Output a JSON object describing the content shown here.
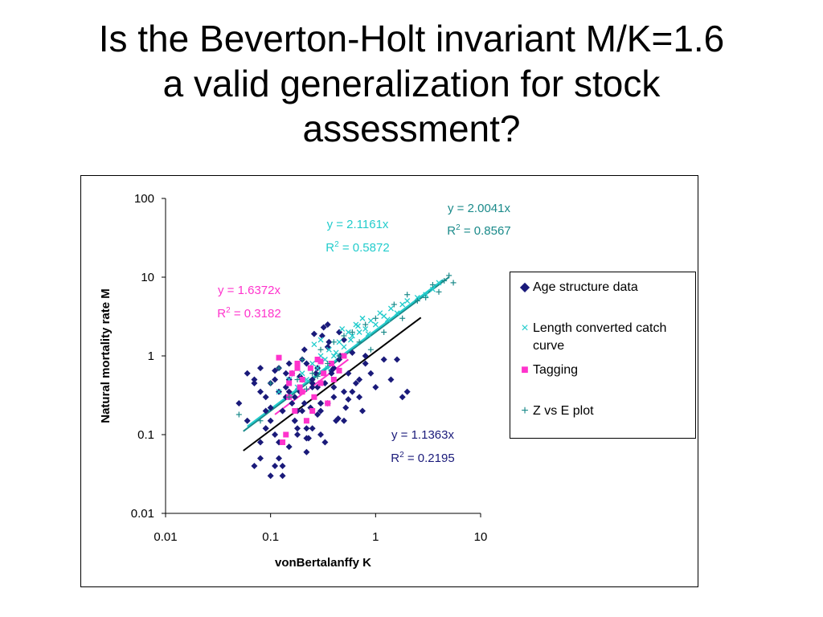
{
  "title_lines": [
    "Is the Beverton-Holt invariant M/K=1.6",
    "a valid generalization for stock",
    "assessment?"
  ],
  "colors": {
    "age": "#1a1a7a",
    "length": "#22cccc",
    "tagging": "#ff33cc",
    "zvse": "#1a8a8a",
    "regression_black": "#000000"
  },
  "chart_data": {
    "type": "scatter",
    "xlabel": "vonBertalanffy K",
    "ylabel": "Natural mortality rate M",
    "xscale": "log",
    "yscale": "log",
    "xlim": [
      0.01,
      10
    ],
    "ylim": [
      0.01,
      100
    ],
    "x_ticks": [
      "0.01",
      "0.1",
      "1",
      "10"
    ],
    "y_ticks": [
      "0.01",
      "0.1",
      "1",
      "10",
      "100"
    ],
    "legend_position": "right",
    "series": [
      {
        "name": "Age structure data",
        "color": "#1a1a7a",
        "marker": "diamond",
        "x": [
          0.05,
          0.06,
          0.07,
          0.08,
          0.09,
          0.1,
          0.11,
          0.12,
          0.13,
          0.14,
          0.06,
          0.07,
          0.08,
          0.09,
          0.1,
          0.11,
          0.12,
          0.14,
          0.15,
          0.16,
          0.08,
          0.09,
          0.1,
          0.12,
          0.13,
          0.15,
          0.17,
          0.18,
          0.2,
          0.22,
          0.1,
          0.11,
          0.13,
          0.15,
          0.17,
          0.19,
          0.21,
          0.23,
          0.25,
          0.28,
          0.12,
          0.14,
          0.16,
          0.18,
          0.2,
          0.22,
          0.25,
          0.28,
          0.3,
          0.33,
          0.15,
          0.17,
          0.19,
          0.21,
          0.24,
          0.27,
          0.3,
          0.33,
          0.36,
          0.4,
          0.2,
          0.22,
          0.25,
          0.28,
          0.31,
          0.35,
          0.38,
          0.42,
          0.46,
          0.5,
          0.25,
          0.3,
          0.35,
          0.4,
          0.45,
          0.5,
          0.55,
          0.6,
          0.7,
          0.8,
          0.3,
          0.4,
          0.5,
          0.6,
          0.7,
          0.8,
          0.9,
          1.0,
          1.2,
          1.4,
          0.07,
          0.08,
          0.09,
          0.11,
          0.13,
          0.35,
          0.45,
          0.55,
          0.65,
          0.75,
          1.6,
          1.8,
          2.0,
          0.18,
          0.22,
          0.26,
          0.32,
          0.38,
          0.44,
          0.52
        ],
        "y": [
          0.25,
          0.6,
          0.04,
          0.08,
          0.3,
          0.15,
          0.5,
          0.7,
          0.2,
          0.4,
          0.15,
          0.45,
          0.05,
          0.2,
          0.03,
          0.1,
          0.35,
          0.6,
          0.07,
          0.25,
          0.7,
          0.12,
          0.45,
          0.05,
          0.2,
          0.8,
          0.3,
          0.12,
          0.5,
          0.09,
          0.22,
          0.65,
          0.04,
          0.35,
          0.15,
          0.55,
          0.25,
          0.09,
          0.45,
          0.18,
          0.08,
          0.3,
          0.6,
          0.2,
          0.9,
          0.12,
          0.4,
          0.7,
          0.25,
          0.08,
          0.5,
          0.15,
          0.35,
          1.2,
          0.22,
          0.6,
          0.1,
          0.45,
          1.5,
          0.3,
          0.2,
          0.8,
          0.12,
          0.4,
          1.8,
          0.25,
          0.6,
          0.15,
          1.0,
          0.35,
          0.5,
          0.2,
          1.3,
          0.4,
          0.9,
          0.15,
          0.6,
          1.1,
          0.3,
          0.8,
          0.25,
          0.7,
          1.6,
          0.35,
          0.5,
          1.0,
          0.6,
          0.4,
          0.9,
          0.5,
          0.5,
          0.35,
          0.12,
          0.04,
          0.03,
          2.5,
          2.0,
          0.28,
          0.45,
          0.2,
          0.9,
          0.3,
          0.35,
          0.1,
          0.06,
          1.9,
          2.3,
          0.65,
          0.16,
          0.22
        ]
      },
      {
        "name": "Length converted catch curve",
        "color": "#22cccc",
        "marker": "x",
        "x": [
          0.12,
          0.15,
          0.18,
          0.2,
          0.22,
          0.25,
          0.28,
          0.3,
          0.33,
          0.36,
          0.4,
          0.45,
          0.5,
          0.55,
          0.6,
          0.65,
          0.7,
          0.75,
          0.8,
          0.9,
          1.0,
          1.1,
          1.2,
          1.4,
          1.6,
          1.8,
          2.0,
          2.5,
          3.0,
          3.5,
          4.0,
          0.35,
          0.42,
          0.48,
          0.58,
          0.68,
          0.85,
          1.3,
          0.26,
          0.3
        ],
        "y": [
          0.35,
          0.5,
          0.4,
          0.6,
          0.5,
          0.8,
          0.7,
          1.0,
          0.9,
          1.2,
          1.0,
          1.5,
          1.3,
          2.0,
          1.8,
          2.5,
          2.0,
          3.0,
          2.2,
          2.8,
          2.5,
          3.5,
          3.2,
          4.0,
          3.5,
          4.5,
          5.0,
          5.5,
          6.0,
          7.0,
          8.5,
          0.7,
          1.1,
          2.2,
          1.6,
          2.4,
          1.9,
          2.9,
          1.4,
          1.6
        ]
      },
      {
        "name": "Tagging",
        "color": "#ff33cc",
        "marker": "square",
        "x": [
          0.12,
          0.14,
          0.15,
          0.16,
          0.17,
          0.18,
          0.19,
          0.2,
          0.22,
          0.24,
          0.26,
          0.28,
          0.3,
          0.32,
          0.35,
          0.38,
          0.4,
          0.45,
          0.5,
          0.15,
          0.2,
          0.25,
          0.3,
          0.13,
          0.18
        ],
        "y": [
          0.95,
          0.1,
          0.3,
          0.6,
          0.2,
          0.8,
          0.4,
          0.5,
          0.15,
          0.7,
          0.3,
          0.9,
          0.45,
          0.6,
          0.25,
          0.8,
          0.5,
          0.65,
          1.0,
          0.45,
          0.35,
          0.2,
          0.85,
          0.08,
          0.7
        ]
      },
      {
        "name": "Z vs E plot",
        "color": "#1a8a8a",
        "marker": "plus",
        "x": [
          0.05,
          0.08,
          0.1,
          0.12,
          0.15,
          0.18,
          0.2,
          0.25,
          0.3,
          0.35,
          0.4,
          0.45,
          0.5,
          0.6,
          0.7,
          0.8,
          0.9,
          1.0,
          1.2,
          1.5,
          1.8,
          2.0,
          2.5,
          3.0,
          3.5,
          4.0,
          4.5,
          5.0,
          5.5,
          0.22,
          0.28
        ],
        "y": [
          0.18,
          0.15,
          0.45,
          0.7,
          0.3,
          0.5,
          0.9,
          0.6,
          1.2,
          0.8,
          1.5,
          1.0,
          1.8,
          2.0,
          1.5,
          2.5,
          1.2,
          3.0,
          2.0,
          4.5,
          3.0,
          6.0,
          5.0,
          5.5,
          8.0,
          6.5,
          9.0,
          10.5,
          8.5,
          0.38,
          0.55
        ]
      }
    ],
    "regressions": [
      {
        "series": "Z vs E plot",
        "equation": "y = 2.0041x",
        "r2_label": "R",
        "r2_sup": "2",
        "r2_value": " = 0.8567",
        "slope": 2.0041,
        "x_range": [
          0.055,
          5.0
        ],
        "color": "#1a8a8a"
      },
      {
        "series": "Length converted catch curve",
        "equation": "y = 2.1161x",
        "r2_label": "R",
        "r2_sup": "2",
        "r2_value": " = 0.5872",
        "slope": 2.1161,
        "x_range": [
          0.06,
          4.4
        ],
        "color": "#22cccc"
      },
      {
        "series": "Tagging",
        "equation": "y = 1.6372x",
        "r2_label": "R",
        "r2_sup": "2",
        "r2_value": " = 0.3182",
        "slope": 1.6372,
        "x_range": [
          0.11,
          0.55
        ],
        "color": "#ff33cc"
      },
      {
        "series": "Age structure data",
        "equation": "y = 1.1363x",
        "r2_label": "R",
        "r2_sup": "2",
        "r2_value": " = 0.2195",
        "slope": 1.1363,
        "x_range": [
          0.055,
          2.7
        ],
        "color": "#000000"
      }
    ],
    "annotation_colors": [
      "#1a8a8a",
      "#22cccc",
      "#ff33cc",
      "#1a1a7a"
    ]
  },
  "legend": {
    "items": [
      {
        "label": "Age structure data",
        "marker": "◆",
        "color": "#1a1a7a"
      },
      {
        "label": "Length converted catch curve",
        "marker": "×",
        "color": "#22cccc"
      },
      {
        "label": "Tagging",
        "marker": "■",
        "color": "#ff33cc"
      },
      {
        "label": "Z vs E plot",
        "marker": "+",
        "color": "#1a8a8a"
      }
    ]
  }
}
